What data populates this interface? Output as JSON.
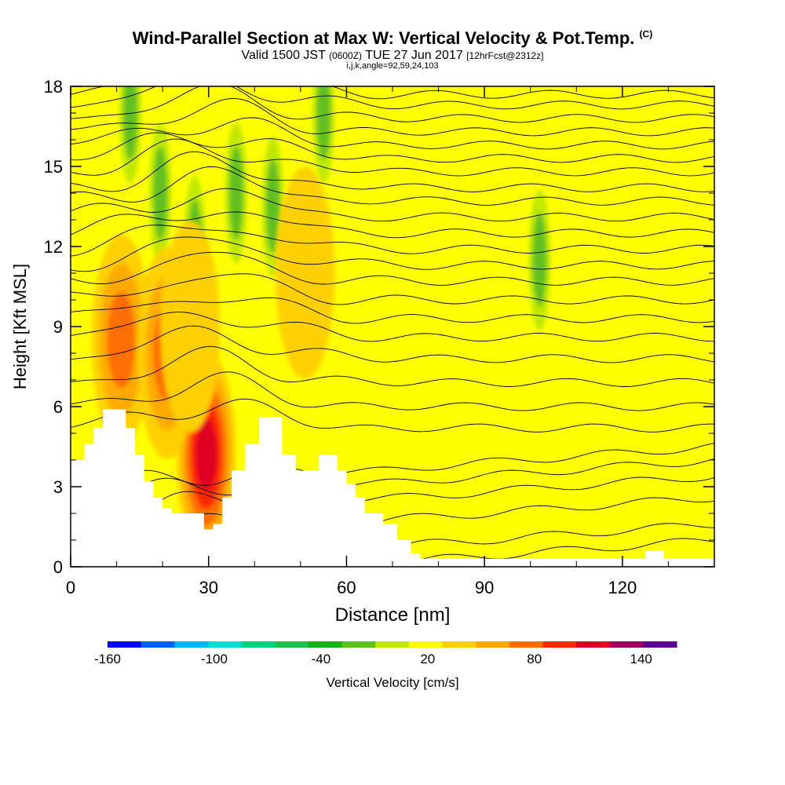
{
  "header": {
    "title": "Wind-Parallel Section at Max W: Vertical Velocity & Pot.Temp.",
    "copyright": "(C)",
    "subtitle_valid": "Valid 1500 JST",
    "subtitle_z": "(0600Z)",
    "subtitle_date": "TUE 27 Jun 2017",
    "subtitle_fcst": "[12hrFcst@2312z]",
    "params": "i,j,k,angle=92,59,24,103"
  },
  "chart_data": {
    "type": "heatmap",
    "xlabel": "Distance [nm]",
    "ylabel": "Height [Kft MSL]",
    "xlim": [
      0,
      140
    ],
    "ylim": [
      0,
      18
    ],
    "x_ticks": [
      "0",
      "30",
      "60",
      "90",
      "120"
    ],
    "x_tick_values": [
      0,
      30,
      60,
      90,
      120
    ],
    "y_ticks": [
      "0",
      "3",
      "6",
      "9",
      "12",
      "15",
      "18"
    ],
    "y_tick_values": [
      0,
      3,
      6,
      9,
      12,
      15,
      18
    ],
    "colorbar": {
      "label": "Vertical Velocity [cm/s]",
      "range": [
        -160,
        160
      ],
      "step": 20,
      "tick_labels": [
        "-160",
        "-100",
        "-40",
        "20",
        "80",
        "140"
      ],
      "tick_values": [
        -160,
        -100,
        -40,
        20,
        80,
        140
      ],
      "colors": [
        "#0000ff",
        "#0060ff",
        "#00b4ff",
        "#00e0d0",
        "#00d080",
        "#20c050",
        "#18b018",
        "#60c020",
        "#c0e800",
        "#ffff00",
        "#ffd000",
        "#ffaa00",
        "#ff6e00",
        "#ff2800",
        "#e00020",
        "#a00060",
        "#5a0090"
      ]
    },
    "terrain_kft": [
      [
        0,
        4
      ],
      [
        2,
        4
      ],
      [
        3,
        4.6
      ],
      [
        5,
        5.2
      ],
      [
        7,
        5.9
      ],
      [
        10,
        5.9
      ],
      [
        12,
        5.2
      ],
      [
        14,
        4.2
      ],
      [
        16,
        3.2
      ],
      [
        18,
        2.6
      ],
      [
        20,
        2.2
      ],
      [
        22,
        2.0
      ],
      [
        26,
        2.0
      ],
      [
        29,
        1.4
      ],
      [
        31,
        1.6
      ],
      [
        33,
        2.6
      ],
      [
        35,
        3.6
      ],
      [
        38,
        4.6
      ],
      [
        41,
        5.6
      ],
      [
        43,
        5.6
      ],
      [
        46,
        4.2
      ],
      [
        49,
        3.6
      ],
      [
        52,
        3.6
      ],
      [
        54,
        4.2
      ],
      [
        56,
        4.2
      ],
      [
        58,
        3.6
      ],
      [
        60,
        3.1
      ],
      [
        62,
        2.6
      ],
      [
        64,
        2.0
      ],
      [
        66,
        2.0
      ],
      [
        68,
        1.6
      ],
      [
        71,
        1.0
      ],
      [
        74,
        0.5
      ],
      [
        76,
        0.3
      ],
      [
        124,
        0.3
      ],
      [
        125,
        0.6
      ],
      [
        128,
        0.6
      ],
      [
        129,
        0.3
      ],
      [
        140,
        0.3
      ]
    ],
    "updraft_cores": [
      {
        "x": 29.5,
        "z": 4.2,
        "w": 110
      },
      {
        "x": 11,
        "z": 8.5,
        "w": 80
      },
      {
        "x": 21,
        "z": 8.0,
        "w": 70
      },
      {
        "x": 51,
        "z": 11.0,
        "w": 30
      },
      {
        "x": 26,
        "z": 9.0,
        "w": 40
      }
    ],
    "downdraft_cores": [
      {
        "x": 13,
        "z": 17.0,
        "w": -40
      },
      {
        "x": 19.5,
        "z": 14.0,
        "w": -40
      },
      {
        "x": 27,
        "z": 12.0,
        "w": -40
      },
      {
        "x": 36,
        "z": 14.0,
        "w": -40
      },
      {
        "x": 44,
        "z": 13.5,
        "w": -30
      },
      {
        "x": 102,
        "z": 11.5,
        "w": -40
      },
      {
        "x": 55,
        "z": 17.0,
        "w": -25
      }
    ],
    "isentropes": {
      "levels_z_at_east_kft": [
        1.0,
        1.6,
        2.6,
        3.4,
        4.0,
        4.5,
        5.2,
        6.0,
        6.9,
        7.8,
        8.6,
        9.3,
        10.0,
        10.7,
        11.3,
        11.9,
        12.5,
        13.1,
        13.7,
        14.2,
        14.8,
        15.3,
        15.8,
        16.3,
        16.8,
        17.3,
        17.7
      ]
    }
  }
}
